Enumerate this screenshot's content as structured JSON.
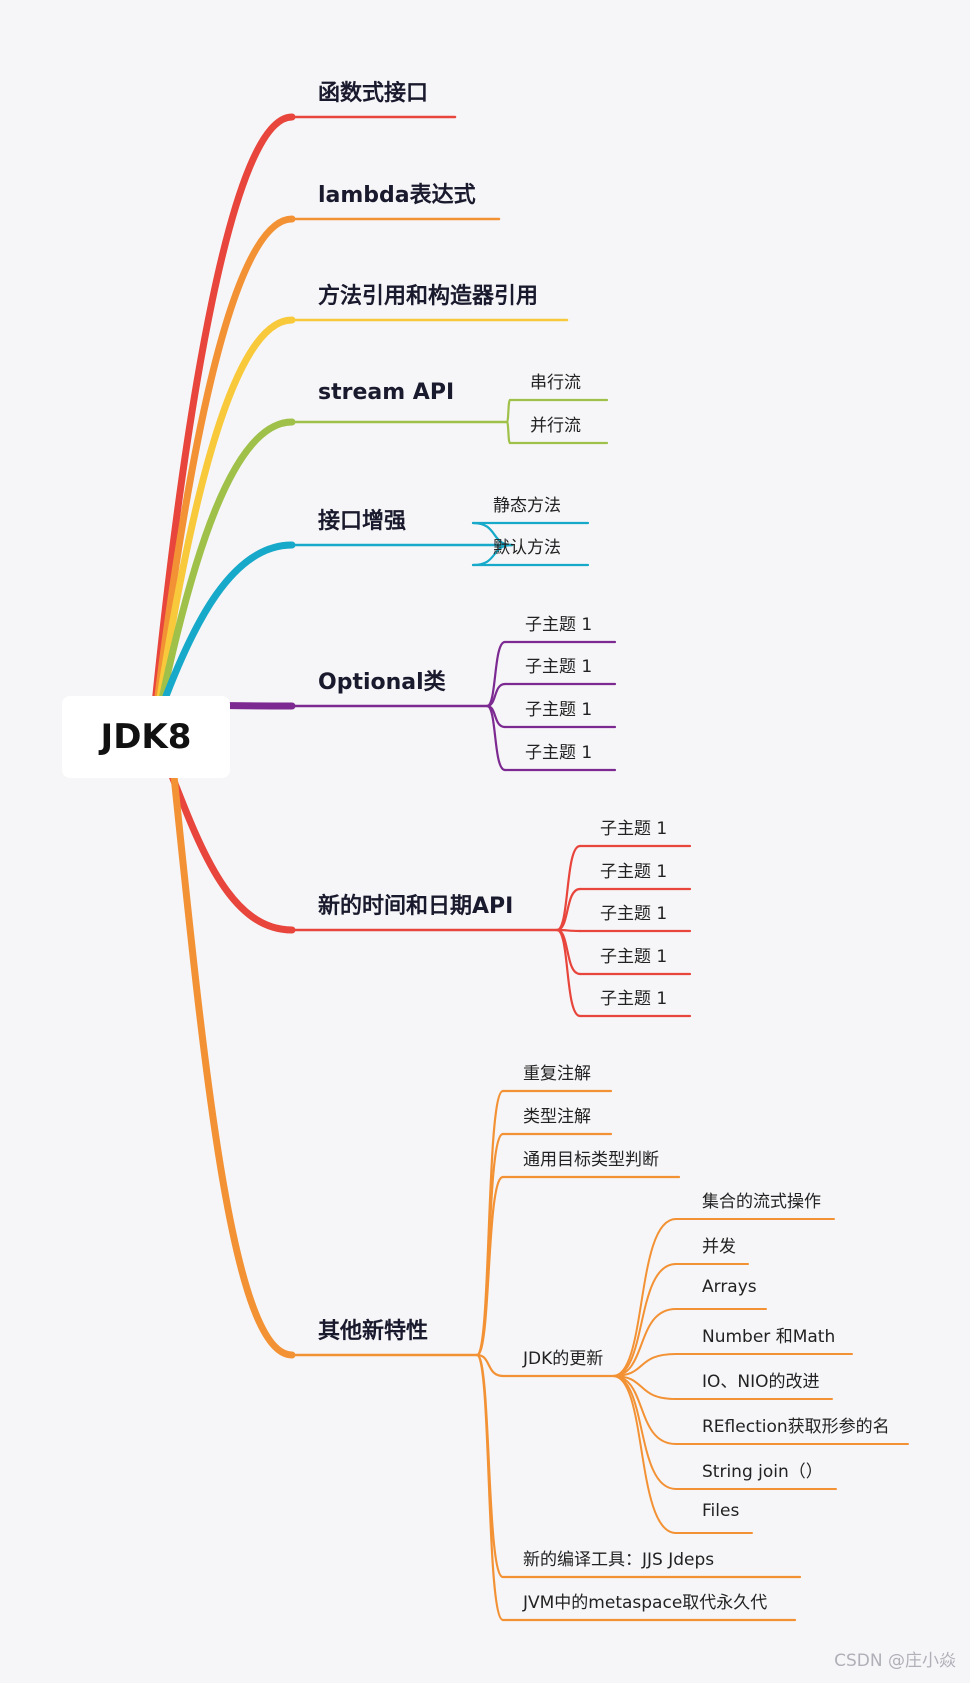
{
  "root": {
    "label": "JDK8"
  },
  "branches": [
    {
      "label": "函数式接口",
      "color": "#e8453c",
      "children": []
    },
    {
      "label": "lambda表达式",
      "color": "#f39235",
      "children": []
    },
    {
      "label": "方法引用和构造器引用",
      "color": "#f8c93a",
      "children": []
    },
    {
      "label": "stream API",
      "color": "#9fc14a",
      "children": [
        {
          "label": "串行流"
        },
        {
          "label": "并行流"
        }
      ]
    },
    {
      "label": "接口增强",
      "color": "#17a9c9",
      "children": [
        {
          "label": "静态方法"
        },
        {
          "label": "默认方法"
        }
      ]
    },
    {
      "label": "Optional类",
      "color": "#7c2a91",
      "children": [
        {
          "label": "子主题 1"
        },
        {
          "label": "子主题 1"
        },
        {
          "label": "子主题 1"
        },
        {
          "label": "子主题 1"
        }
      ]
    },
    {
      "label": "新的时间和日期API",
      "color": "#e8453c",
      "children": [
        {
          "label": "子主题 1"
        },
        {
          "label": "子主题 1"
        },
        {
          "label": "子主题 1"
        },
        {
          "label": "子主题 1"
        },
        {
          "label": "子主题 1"
        }
      ]
    },
    {
      "label": "其他新特性",
      "color": "#f39235",
      "children": [
        {
          "label": "重复注解"
        },
        {
          "label": "类型注解"
        },
        {
          "label": "通用目标类型判断"
        },
        {
          "label": "JDK的更新",
          "children": [
            {
              "label": "集合的流式操作"
            },
            {
              "label": "并发"
            },
            {
              "label": "Arrays"
            },
            {
              "label": "Number 和Math"
            },
            {
              "label": "IO、NIO的改进"
            },
            {
              "label": "REflection获取形参的名"
            },
            {
              "label": "String join（）"
            },
            {
              "label": "Files"
            }
          ]
        },
        {
          "label": "新的编译工具：JJS Jdeps"
        },
        {
          "label": "JVM中的metaspace取代永久代"
        }
      ]
    }
  ],
  "watermark": "CSDN @庄小焱"
}
